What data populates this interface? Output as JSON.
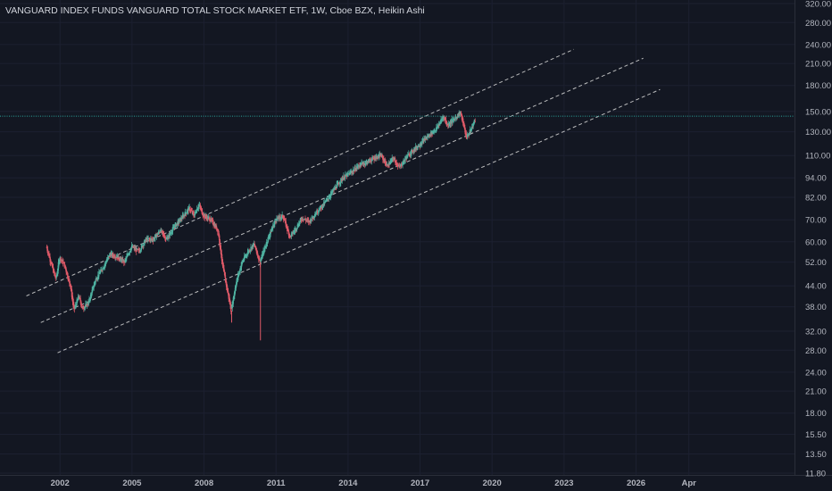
{
  "header": {
    "symbol": "VANGUARD INDEX FUNDS VANGUARD TOTAL STOCK MARKET ETF",
    "interval": "1W",
    "exchange": "Cboe BZX",
    "chart_style": "Heikin Ashi",
    "separator": ", "
  },
  "colors": {
    "background": "#131722",
    "up": "#4fb3a2",
    "down": "#e05a68",
    "channel": "#d8d8d8",
    "hline": "#2ba39a",
    "axis_text": "#b2b5be"
  },
  "chart_data": {
    "type": "candlestick",
    "style": "Heikin Ashi",
    "scale": "log",
    "ylim": [
      11.8,
      320
    ],
    "xlim": [
      1999.5,
      2032.6
    ],
    "y_ticks": [
      "320.00",
      "280.00",
      "240.00",
      "210.00",
      "180.00",
      "150.00",
      "130.00",
      "110.00",
      "94.00",
      "82.00",
      "70.00",
      "60.00",
      "52.00",
      "44.00",
      "38.00",
      "32.00",
      "28.00",
      "24.00",
      "21.00",
      "18.00",
      "15.50",
      "13.50",
      "11.80"
    ],
    "x_ticks": [
      "2002",
      "2005",
      "2008",
      "2011",
      "2014",
      "2017",
      "2020",
      "2023",
      "2026",
      "Apr"
    ],
    "x_tick_years": [
      2002,
      2005,
      2008,
      2011,
      2014,
      2017,
      2020,
      2023,
      2026,
      2028.2
    ],
    "price_path": [
      [
        2001.45,
        58
      ],
      [
        2001.7,
        50
      ],
      [
        2001.85,
        46
      ],
      [
        2002.0,
        54
      ],
      [
        2002.2,
        51
      ],
      [
        2002.45,
        44
      ],
      [
        2002.6,
        37
      ],
      [
        2002.8,
        41
      ],
      [
        2002.95,
        37.5
      ],
      [
        2003.2,
        39
      ],
      [
        2003.5,
        46
      ],
      [
        2003.8,
        50
      ],
      [
        2004.1,
        55
      ],
      [
        2004.4,
        54
      ],
      [
        2004.7,
        52
      ],
      [
        2005.0,
        58
      ],
      [
        2005.3,
        56
      ],
      [
        2005.6,
        61
      ],
      [
        2005.9,
        61
      ],
      [
        2006.2,
        65
      ],
      [
        2006.45,
        61
      ],
      [
        2006.8,
        67
      ],
      [
        2007.1,
        71
      ],
      [
        2007.4,
        76
      ],
      [
        2007.6,
        72
      ],
      [
        2007.8,
        78
      ],
      [
        2008.0,
        72
      ],
      [
        2008.3,
        70
      ],
      [
        2008.6,
        65
      ],
      [
        2008.8,
        50
      ],
      [
        2008.95,
        44
      ],
      [
        2009.15,
        37
      ],
      [
        2009.35,
        45
      ],
      [
        2009.6,
        52
      ],
      [
        2009.85,
        56
      ],
      [
        2010.1,
        59
      ],
      [
        2010.35,
        52
      ],
      [
        2010.7,
        62
      ],
      [
        2011.0,
        70
      ],
      [
        2011.3,
        72
      ],
      [
        2011.6,
        62
      ],
      [
        2011.85,
        66
      ],
      [
        2012.1,
        71
      ],
      [
        2012.4,
        69
      ],
      [
        2012.7,
        74
      ],
      [
        2013.0,
        78
      ],
      [
        2013.4,
        86
      ],
      [
        2013.8,
        94
      ],
      [
        2014.1,
        97
      ],
      [
        2014.5,
        103
      ],
      [
        2014.8,
        105
      ],
      [
        2015.1,
        108
      ],
      [
        2015.4,
        110
      ],
      [
        2015.65,
        102
      ],
      [
        2015.9,
        108
      ],
      [
        2016.15,
        101
      ],
      [
        2016.5,
        110
      ],
      [
        2016.9,
        117
      ],
      [
        2017.3,
        125
      ],
      [
        2017.7,
        133
      ],
      [
        2018.0,
        145
      ],
      [
        2018.15,
        136
      ],
      [
        2018.4,
        141
      ],
      [
        2018.7,
        149
      ],
      [
        2018.95,
        125
      ],
      [
        2019.1,
        130
      ],
      [
        2019.3,
        141
      ]
    ],
    "spikes": [
      {
        "x": 2009.15,
        "low": 34
      },
      {
        "x": 2010.35,
        "low": 30
      }
    ],
    "horizontal_line": 145,
    "channel_lines": [
      {
        "x1": 2000.6,
        "y1": 41,
        "x2": 2023.4,
        "y2": 232
      },
      {
        "x1": 2001.2,
        "y1": 34,
        "x2": 2026.3,
        "y2": 218
      },
      {
        "x1": 2001.9,
        "y1": 27.5,
        "x2": 2027.0,
        "y2": 175
      }
    ]
  }
}
